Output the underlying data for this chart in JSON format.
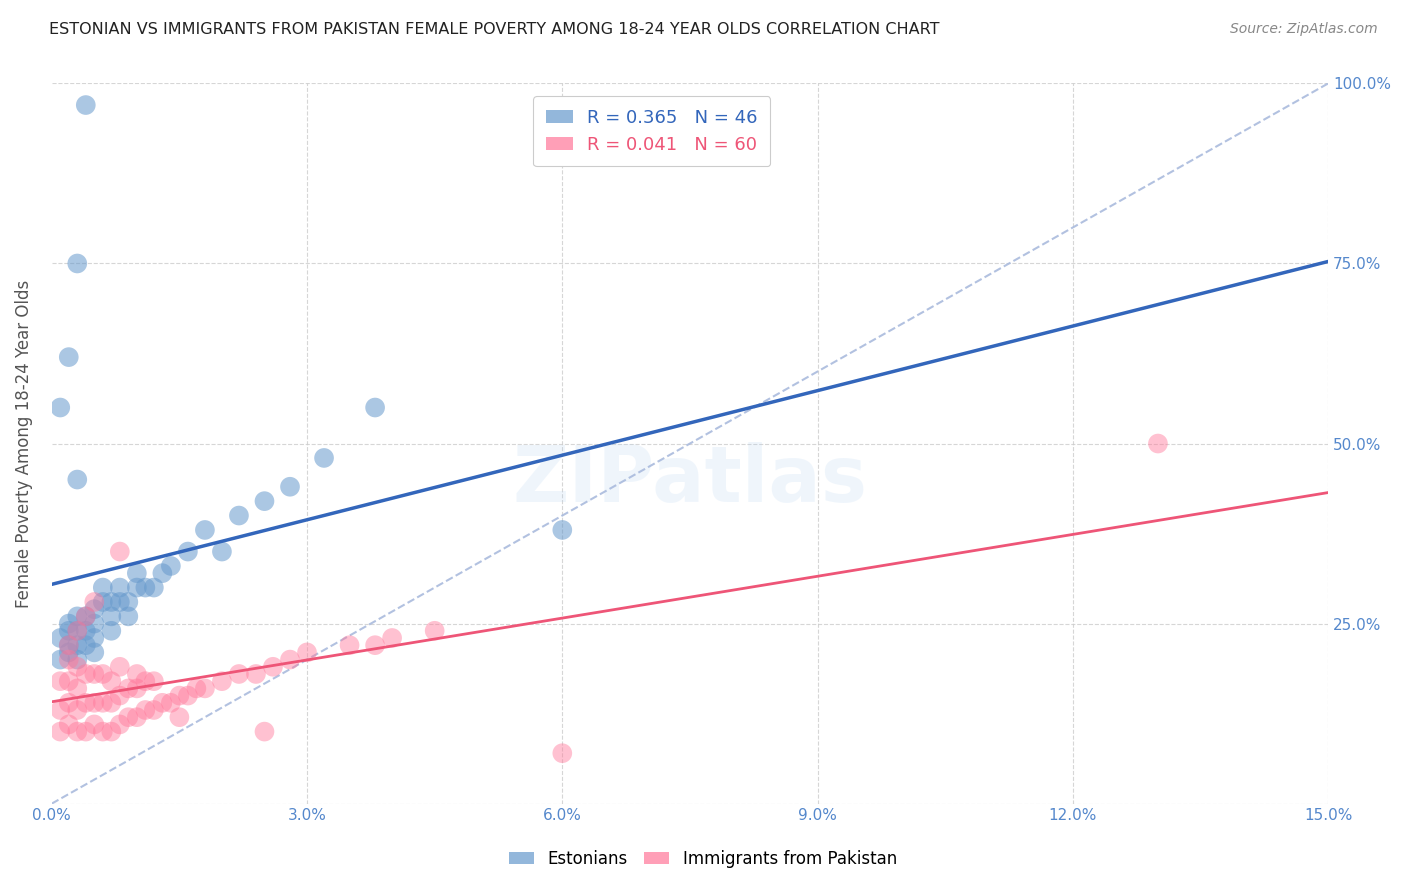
{
  "title": "ESTONIAN VS IMMIGRANTS FROM PAKISTAN FEMALE POVERTY AMONG 18-24 YEAR OLDS CORRELATION CHART",
  "source": "Source: ZipAtlas.com",
  "ylabel": "Female Poverty Among 18-24 Year Olds",
  "xlabel": "",
  "xlim": [
    0,
    0.15
  ],
  "ylim": [
    0,
    1.0
  ],
  "xticks": [
    0.0,
    0.03,
    0.06,
    0.09,
    0.12,
    0.15
  ],
  "yticks": [
    0.0,
    0.25,
    0.5,
    0.75,
    1.0
  ],
  "xtick_labels": [
    "0.0%",
    "3.0%",
    "6.0%",
    "9.0%",
    "12.0%",
    "15.0%"
  ],
  "ytick_labels": [
    "",
    "25.0%",
    "50.0%",
    "75.0%",
    "100.0%"
  ],
  "watermark": "ZIPatlas",
  "legend_R1": "R = 0.365",
  "legend_N1": "N = 46",
  "legend_R2": "R = 0.041",
  "legend_N2": "N = 60",
  "color_blue": "#6699CC",
  "color_pink": "#FF7799",
  "color_blue_dark": "#3366BB",
  "color_pink_dark": "#EE5577",
  "axis_color": "#5588CC",
  "estonian_x": [
    0.001,
    0.001,
    0.002,
    0.002,
    0.002,
    0.002,
    0.003,
    0.003,
    0.003,
    0.003,
    0.004,
    0.004,
    0.004,
    0.005,
    0.005,
    0.005,
    0.005,
    0.006,
    0.006,
    0.007,
    0.007,
    0.007,
    0.008,
    0.008,
    0.009,
    0.009,
    0.01,
    0.01,
    0.011,
    0.012,
    0.013,
    0.014,
    0.016,
    0.018,
    0.02,
    0.022,
    0.025,
    0.028,
    0.032,
    0.038,
    0.002,
    0.003,
    0.004,
    0.06,
    0.001,
    0.003
  ],
  "estonian_y": [
    0.2,
    0.23,
    0.21,
    0.24,
    0.25,
    0.22,
    0.2,
    0.22,
    0.24,
    0.26,
    0.22,
    0.24,
    0.26,
    0.21,
    0.23,
    0.25,
    0.27,
    0.28,
    0.3,
    0.24,
    0.26,
    0.28,
    0.28,
    0.3,
    0.26,
    0.28,
    0.3,
    0.32,
    0.3,
    0.3,
    0.32,
    0.33,
    0.35,
    0.38,
    0.35,
    0.4,
    0.42,
    0.44,
    0.48,
    0.55,
    0.62,
    0.75,
    0.97,
    0.38,
    0.55,
    0.45
  ],
  "pakistan_x": [
    0.001,
    0.001,
    0.001,
    0.002,
    0.002,
    0.002,
    0.002,
    0.003,
    0.003,
    0.003,
    0.003,
    0.004,
    0.004,
    0.004,
    0.005,
    0.005,
    0.005,
    0.006,
    0.006,
    0.006,
    0.007,
    0.007,
    0.007,
    0.008,
    0.008,
    0.008,
    0.009,
    0.009,
    0.01,
    0.01,
    0.011,
    0.011,
    0.012,
    0.012,
    0.013,
    0.014,
    0.015,
    0.016,
    0.017,
    0.018,
    0.02,
    0.022,
    0.024,
    0.026,
    0.028,
    0.03,
    0.035,
    0.038,
    0.04,
    0.045,
    0.002,
    0.003,
    0.004,
    0.005,
    0.008,
    0.01,
    0.015,
    0.025,
    0.13,
    0.06
  ],
  "pakistan_y": [
    0.1,
    0.13,
    0.17,
    0.11,
    0.14,
    0.17,
    0.2,
    0.1,
    0.13,
    0.16,
    0.19,
    0.1,
    0.14,
    0.18,
    0.11,
    0.14,
    0.18,
    0.1,
    0.14,
    0.18,
    0.1,
    0.14,
    0.17,
    0.11,
    0.15,
    0.19,
    0.12,
    0.16,
    0.12,
    0.16,
    0.13,
    0.17,
    0.13,
    0.17,
    0.14,
    0.14,
    0.15,
    0.15,
    0.16,
    0.16,
    0.17,
    0.18,
    0.18,
    0.19,
    0.2,
    0.21,
    0.22,
    0.22,
    0.23,
    0.24,
    0.22,
    0.24,
    0.26,
    0.28,
    0.35,
    0.18,
    0.12,
    0.1,
    0.5,
    0.07
  ]
}
